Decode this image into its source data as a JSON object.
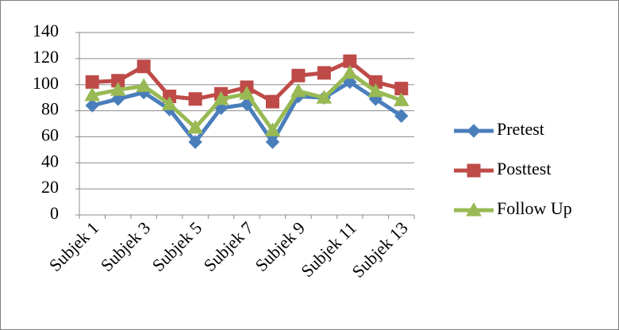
{
  "chart_data": {
    "type": "line",
    "categories": [
      "Subjek 1",
      null,
      "Subjek 3",
      null,
      "Subjek 5",
      null,
      "Subjek 7",
      null,
      "Subjek 9",
      null,
      "Subjek 11",
      null,
      "Subjek 13"
    ],
    "series": [
      {
        "name": "Pretest",
        "color": "#4a7ebb",
        "marker": "diamond",
        "values": [
          84,
          89,
          94,
          81,
          56,
          82,
          85,
          56,
          91,
          90,
          102,
          89,
          76
        ]
      },
      {
        "name": "Posttest",
        "color": "#be4b48",
        "marker": "square",
        "values": [
          102,
          103,
          114,
          91,
          89,
          93,
          98,
          87,
          107,
          109,
          118,
          102,
          97
        ]
      },
      {
        "name": "Follow Up",
        "color": "#98b954",
        "marker": "triangle",
        "values": [
          92,
          96,
          99,
          85,
          67,
          89,
          93,
          65,
          95,
          90,
          109,
          95,
          88
        ]
      }
    ],
    "ylim": [
      0,
      140
    ],
    "yticks": [
      0,
      20,
      40,
      60,
      80,
      100,
      120,
      140
    ],
    "grid": true,
    "legend": "right"
  }
}
